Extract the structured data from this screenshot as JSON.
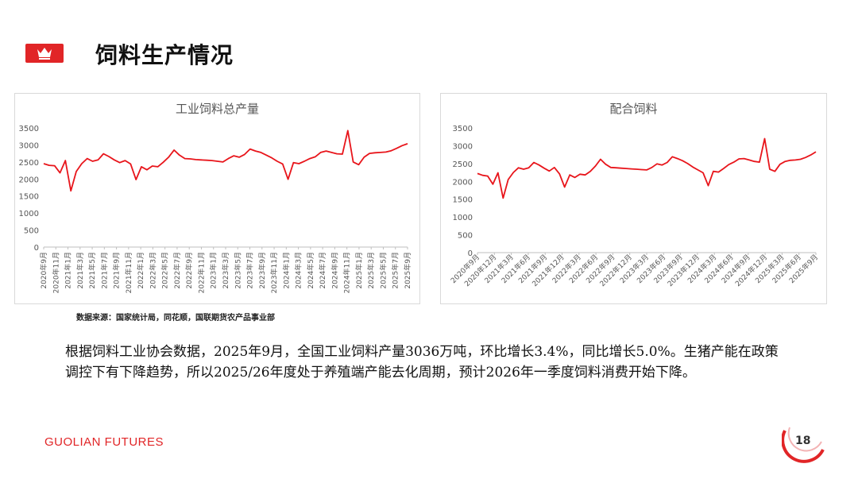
{
  "header": {
    "title": "饲料生产情况",
    "logo_icon": "crown-icon",
    "accent_color": "#e12527"
  },
  "chart_data": [
    {
      "type": "line",
      "title": "工业饲料总产量",
      "color": "#e8151b",
      "ylim": [
        0,
        3500
      ],
      "yticks": [
        0,
        500,
        1000,
        1500,
        2000,
        2500,
        3000,
        3500
      ],
      "x_ticks": [
        "2020年9月",
        "2020年11月",
        "2021年1月",
        "2021年3月",
        "2021年5月",
        "2021年7月",
        "2021年9月",
        "2021年11月",
        "2022年1月",
        "2022年3月",
        "2022年5月",
        "2022年7月",
        "2022年9月",
        "2022年11月",
        "2023年1月",
        "2023年3月",
        "2023年5月",
        "2023年7月",
        "2023年9月",
        "2023年11月",
        "2024年1月",
        "2024年3月",
        "2024年5月",
        "2024年7月",
        "2024年9月",
        "2024年11月",
        "2025年1月",
        "2025年3月",
        "2025年5月",
        "2025年7月",
        "2025年9月"
      ],
      "grid": false,
      "legend": "none",
      "values": [
        2450,
        2400,
        2390,
        2180,
        2540,
        1650,
        2220,
        2450,
        2600,
        2520,
        2560,
        2740,
        2660,
        2560,
        2480,
        2540,
        2440,
        1980,
        2360,
        2270,
        2380,
        2360,
        2490,
        2640,
        2850,
        2700,
        2600,
        2590,
        2570,
        2560,
        2550,
        2540,
        2520,
        2500,
        2600,
        2680,
        2640,
        2720,
        2880,
        2820,
        2780,
        2700,
        2620,
        2520,
        2440,
        1990,
        2480,
        2450,
        2520,
        2600,
        2650,
        2780,
        2820,
        2780,
        2740,
        2730,
        3420,
        2500,
        2420,
        2640,
        2750,
        2770,
        2780,
        2790,
        2830,
        2900,
        2980,
        3036
      ]
    },
    {
      "type": "line",
      "title": "配合饲料",
      "color": "#e8151b",
      "ylim": [
        0,
        3500
      ],
      "yticks": [
        0,
        500,
        1000,
        1500,
        2000,
        2500,
        3000,
        3500
      ],
      "x_ticks": [
        "2020年9月",
        "2020年12月",
        "2021年3月",
        "2021年6月",
        "2021年9月",
        "2021年12月",
        "2022年3月",
        "2022年6月",
        "2022年9月",
        "2022年12月",
        "2023年3月",
        "2023年6月",
        "2023年9月",
        "2023年12月",
        "2024年3月",
        "2024年6月",
        "2024年9月",
        "2024年12月",
        "2025年3月",
        "2025年6月",
        "2025年9月"
      ],
      "grid": false,
      "legend": "none",
      "values": [
        2220,
        2170,
        2150,
        1920,
        2240,
        1530,
        2050,
        2250,
        2380,
        2340,
        2380,
        2530,
        2460,
        2370,
        2290,
        2390,
        2210,
        1840,
        2180,
        2110,
        2200,
        2180,
        2280,
        2430,
        2620,
        2480,
        2390,
        2380,
        2370,
        2360,
        2350,
        2340,
        2330,
        2320,
        2390,
        2490,
        2460,
        2530,
        2690,
        2640,
        2580,
        2500,
        2400,
        2320,
        2240,
        1880,
        2280,
        2260,
        2360,
        2470,
        2540,
        2630,
        2640,
        2600,
        2560,
        2540,
        3200,
        2340,
        2280,
        2480,
        2560,
        2590,
        2600,
        2620,
        2670,
        2740,
        2830
      ]
    }
  ],
  "source_note": "数据来源：国家统计局，同花顺，国联期货农产品事业部",
  "body_text": "根据饲料工业协会数据，2025年9月，全国工业饲料产量3036万吨，环比增长3.4%，同比增长5.0%。生猪产能在政策调控下有下降趋势，所以2025/26年度处于养殖端产能去化周期，预计2026年一季度饲料消费开始下降。",
  "footer": {
    "brand": "GUOLIAN FUTURES",
    "page_number": "18"
  }
}
